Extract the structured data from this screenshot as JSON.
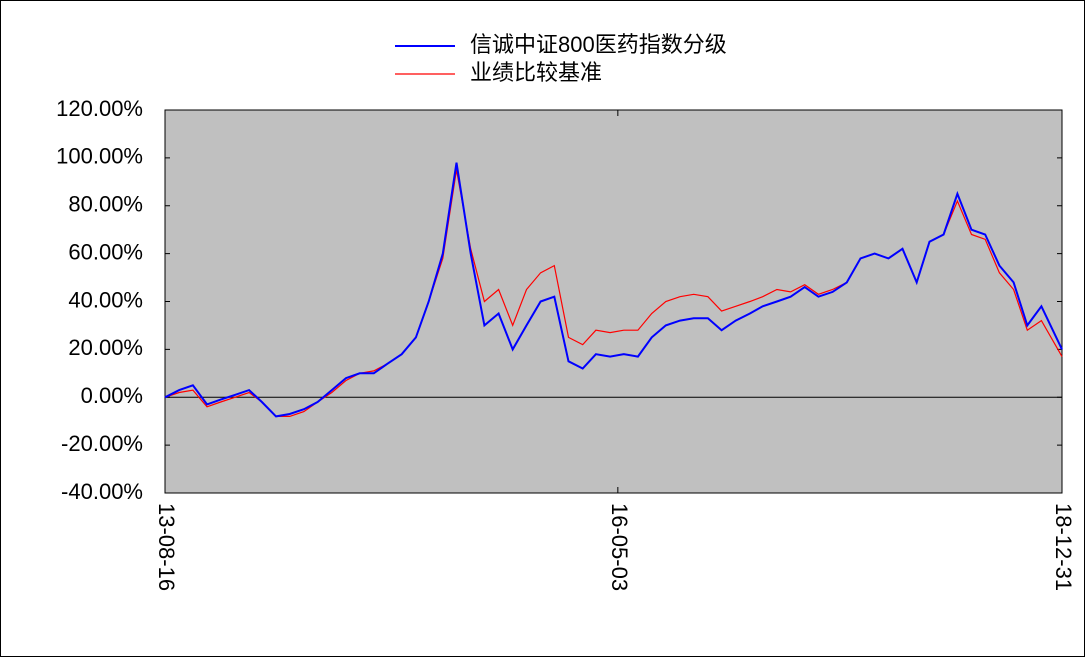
{
  "chart_data": {
    "type": "line",
    "x": [
      "13-08-16",
      "13-09-16",
      "13-10-16",
      "13-11-16",
      "13-12-16",
      "14-01-16",
      "14-02-16",
      "14-03-16",
      "14-04-16",
      "14-05-16",
      "14-06-16",
      "14-07-16",
      "14-08-16",
      "14-09-16",
      "14-10-16",
      "14-11-16",
      "14-12-16",
      "15-01-16",
      "15-02-16",
      "15-03-16",
      "15-04-16",
      "15-05-16",
      "15-06-16",
      "15-07-16",
      "15-08-16",
      "15-09-16",
      "15-10-16",
      "15-11-16",
      "15-12-16",
      "16-01-16",
      "16-02-16",
      "16-03-16",
      "16-04-16",
      "16-05-16",
      "16-06-16",
      "16-07-16",
      "16-08-16",
      "16-09-16",
      "16-10-16",
      "16-11-16",
      "16-12-16",
      "17-01-16",
      "17-02-16",
      "17-03-16",
      "17-04-16",
      "17-05-16",
      "17-06-16",
      "17-07-16",
      "17-08-16",
      "17-09-16",
      "17-10-16",
      "17-11-16",
      "17-12-16",
      "18-01-16",
      "18-02-16",
      "18-03-16",
      "18-04-16",
      "18-05-16",
      "18-06-16",
      "18-07-16",
      "18-08-16",
      "18-09-16",
      "18-10-16",
      "18-11-16",
      "18-12-31"
    ],
    "series": [
      {
        "name": "信诚中证800医药指数分级",
        "color": "#0000ff",
        "values": [
          0,
          3,
          5,
          -3,
          -1,
          1,
          3,
          -2,
          -8,
          -7,
          -5,
          -2,
          3,
          8,
          10,
          10,
          14,
          18,
          25,
          40,
          60,
          98,
          60,
          30,
          35,
          20,
          30,
          40,
          42,
          15,
          12,
          18,
          17,
          18,
          17,
          25,
          30,
          32,
          33,
          33,
          28,
          32,
          35,
          38,
          40,
          42,
          46,
          42,
          44,
          48,
          58,
          60,
          58,
          62,
          48,
          65,
          68,
          85,
          70,
          68,
          55,
          48,
          30,
          38,
          20
        ]
      },
      {
        "name": "业绩比较基准",
        "color": "#ff0000",
        "values": [
          0,
          2,
          3,
          -4,
          -2,
          0,
          2,
          -2,
          -8,
          -8,
          -6,
          -2,
          2,
          7,
          10,
          11,
          14,
          18,
          25,
          40,
          58,
          95,
          62,
          40,
          45,
          30,
          45,
          52,
          55,
          25,
          22,
          28,
          27,
          28,
          28,
          35,
          40,
          42,
          43,
          42,
          36,
          38,
          40,
          42,
          45,
          44,
          47,
          43,
          45,
          48,
          58,
          60,
          58,
          62,
          48,
          65,
          68,
          82,
          68,
          66,
          52,
          45,
          28,
          32,
          17
        ]
      }
    ],
    "xlim": [
      "13-08-16",
      "18-12-31"
    ],
    "xticks": [
      "13-08-16",
      "16-05-03",
      "18-12-31"
    ],
    "ylim": [
      -40,
      120
    ],
    "yticks": [
      {
        "value": -40,
        "label": "-40.00%"
      },
      {
        "value": -20,
        "label": "-20.00%"
      },
      {
        "value": 0,
        "label": "0.00%"
      },
      {
        "value": 20,
        "label": "20.00%"
      },
      {
        "value": 40,
        "label": "40.00%"
      },
      {
        "value": 60,
        "label": "60.00%"
      },
      {
        "value": 80,
        "label": "80.00%"
      },
      {
        "value": 100,
        "label": "100.00%"
      },
      {
        "value": 120,
        "label": "120.00%"
      }
    ],
    "legend": "top"
  }
}
